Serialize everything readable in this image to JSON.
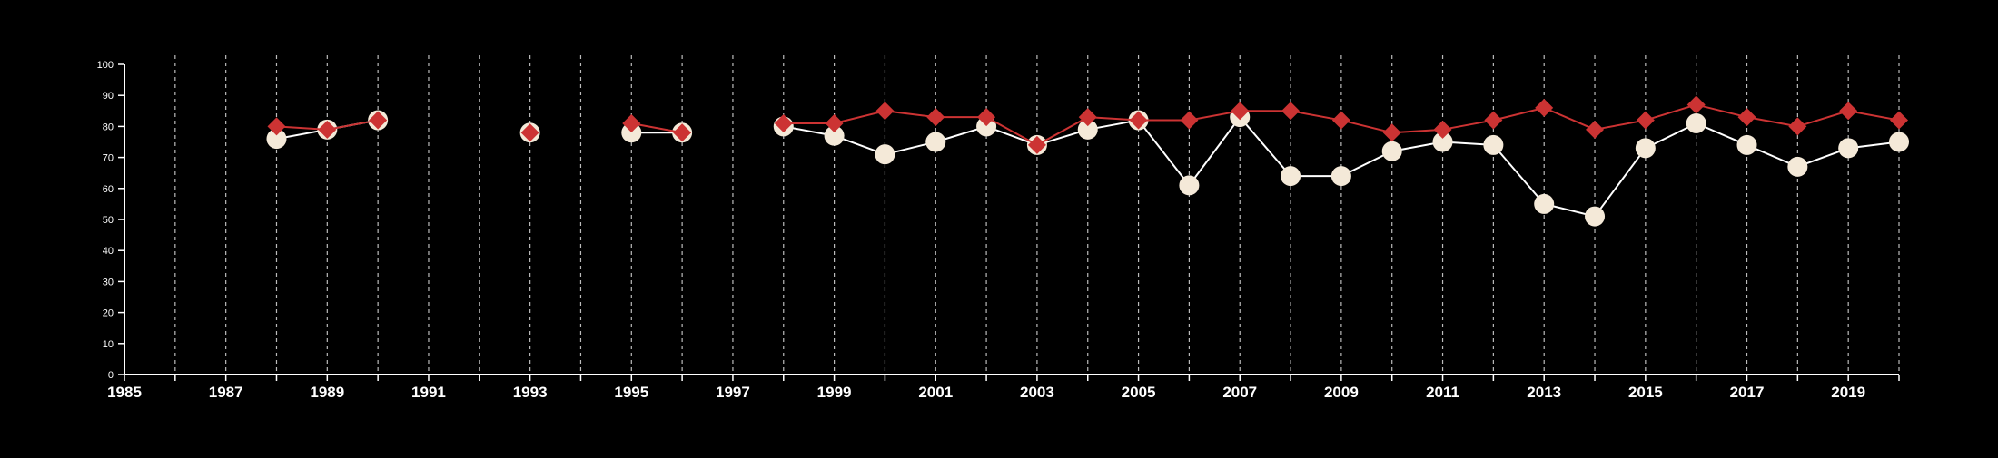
{
  "chart_data": {
    "type": "line",
    "title": "",
    "xlabel": "",
    "ylabel": "",
    "xlim": [
      1985,
      2020
    ],
    "ylim": [
      0,
      100
    ],
    "y_ticks": [
      0,
      10,
      20,
      30,
      40,
      50,
      60,
      70,
      80,
      90,
      100
    ],
    "y_tick_labels": [
      "0",
      "10",
      "20",
      "30",
      "40",
      "50",
      "60",
      "70",
      "80",
      "90",
      "100"
    ],
    "x_ticks": [
      1985,
      1987,
      1989,
      1991,
      1993,
      1995,
      1997,
      1999,
      2001,
      2003,
      2005,
      2007,
      2009,
      2011,
      2013,
      2015,
      2017,
      2019
    ],
    "x_tick_labels": [
      "1985",
      "1987",
      "1989",
      "1991",
      "1993",
      "1995",
      "1997",
      "1999",
      "2001",
      "2003",
      "2005",
      "2007",
      "2009",
      "2011",
      "2013",
      "2015",
      "2017",
      "2019"
    ],
    "vertical_gridlines": "dashed, yearly",
    "background_color": "#000000",
    "axis_color": "#ffffff",
    "grid_color": "#bbbbbb",
    "series": [
      {
        "marker": "circle",
        "color": "#ffffff",
        "marker_fill": "#f4e9d8",
        "points": [
          [
            1988,
            76
          ],
          [
            1989,
            79
          ],
          [
            1990,
            82
          ],
          [
            1993,
            78
          ],
          [
            1995,
            78
          ],
          [
            1996,
            78
          ],
          [
            1998,
            80
          ],
          [
            1999,
            77
          ],
          [
            2000,
            71
          ],
          [
            2001,
            75
          ],
          [
            2002,
            80
          ],
          [
            2003,
            74
          ],
          [
            2004,
            79
          ],
          [
            2005,
            82
          ],
          [
            2006,
            61
          ],
          [
            2007,
            83
          ],
          [
            2008,
            64
          ],
          [
            2009,
            64
          ],
          [
            2010,
            72
          ],
          [
            2011,
            75
          ],
          [
            2012,
            74
          ],
          [
            2013,
            55
          ],
          [
            2014,
            51
          ],
          [
            2015,
            73
          ],
          [
            2016,
            81
          ],
          [
            2017,
            74
          ],
          [
            2018,
            67
          ],
          [
            2019,
            73
          ],
          [
            2020,
            75
          ]
        ]
      },
      {
        "marker": "diamond",
        "color": "#cc3333",
        "marker_fill": "#cc3333",
        "points": [
          [
            1988,
            80
          ],
          [
            1989,
            79
          ],
          [
            1990,
            82
          ],
          [
            1993,
            78
          ],
          [
            1995,
            81
          ],
          [
            1996,
            78
          ],
          [
            1998,
            81
          ],
          [
            1999,
            81
          ],
          [
            2000,
            85
          ],
          [
            2001,
            83
          ],
          [
            2002,
            83
          ],
          [
            2003,
            74
          ],
          [
            2004,
            83
          ],
          [
            2005,
            82
          ],
          [
            2006,
            82
          ],
          [
            2007,
            85
          ],
          [
            2008,
            85
          ],
          [
            2009,
            82
          ],
          [
            2010,
            78
          ],
          [
            2011,
            79
          ],
          [
            2012,
            82
          ],
          [
            2013,
            86
          ],
          [
            2014,
            79
          ],
          [
            2015,
            82
          ],
          [
            2016,
            87
          ],
          [
            2017,
            83
          ],
          [
            2018,
            80
          ],
          [
            2019,
            85
          ],
          [
            2020,
            82
          ]
        ]
      }
    ]
  }
}
